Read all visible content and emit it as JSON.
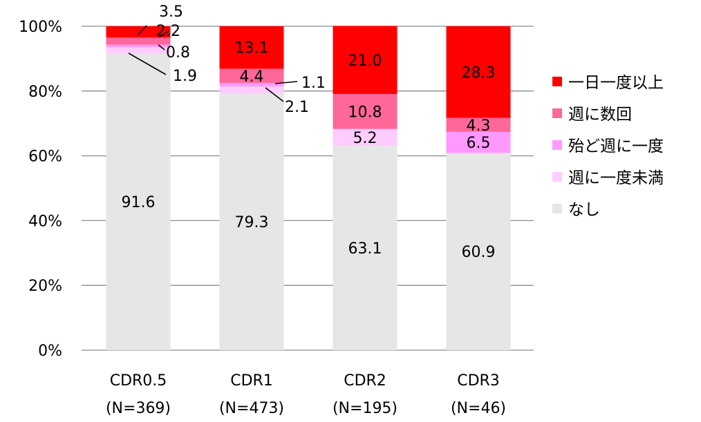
{
  "chart_data": {
    "type": "bar",
    "stacked": true,
    "categories": [
      {
        "name": "CDR0.5",
        "n": "(N=369)"
      },
      {
        "name": "CDR1",
        "n": "(N=473)"
      },
      {
        "name": "CDR2",
        "n": "(N=195)"
      },
      {
        "name": "CDR3",
        "n": "(N=46)"
      }
    ],
    "series": [
      {
        "name": "なし",
        "color": "#E6E6E6",
        "values": [
          91.6,
          79.3,
          63.1,
          60.9
        ],
        "labels": [
          "91.6",
          "79.3",
          "63.1",
          "60.9"
        ]
      },
      {
        "name": "週に一度未満",
        "color": "#FFCCFF",
        "values": [
          1.9,
          2.1,
          5.2,
          0.0
        ],
        "labels": [
          "1.9",
          "2.1",
          "5.2",
          ""
        ]
      },
      {
        "name": "殆ど週に一度",
        "color": "#FF99FF",
        "values": [
          0.8,
          1.1,
          0.0,
          6.5
        ],
        "labels": [
          "0.8",
          "1.1",
          "",
          "6.5"
        ]
      },
      {
        "name": "週に数回",
        "color": "#FF6699",
        "values": [
          2.2,
          4.4,
          10.8,
          4.3
        ],
        "labels": [
          "2.2",
          "4.4",
          "10.8",
          "4.3"
        ]
      },
      {
        "name": "一日一度以上",
        "color": "#FF0000",
        "values": [
          3.5,
          13.1,
          21.0,
          28.3
        ],
        "labels": [
          "3.5",
          "13.1",
          "21.0",
          "28.3"
        ]
      }
    ],
    "legend_order": [
      "一日一度以上",
      "週に数回",
      "殆ど週に一度",
      "週に一度未満",
      "なし"
    ],
    "ylim": [
      0,
      100
    ],
    "yticks": [
      "0%",
      "20%",
      "40%",
      "60%",
      "80%",
      "100%"
    ],
    "grid": true,
    "legend_position": "right"
  }
}
